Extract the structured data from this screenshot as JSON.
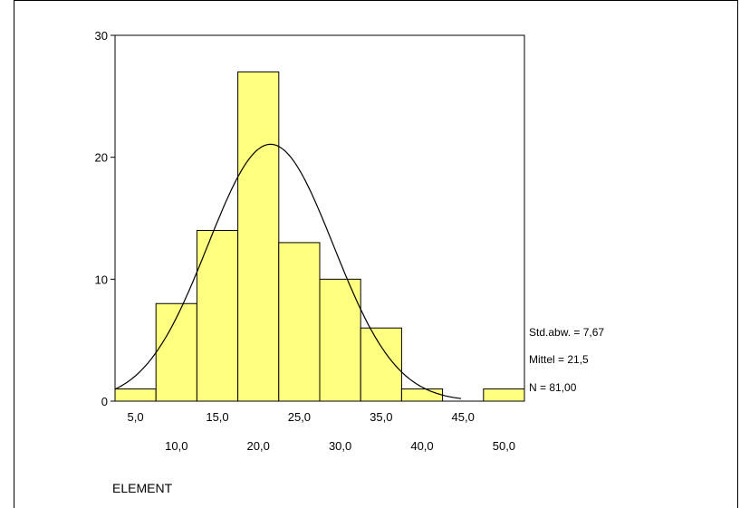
{
  "chart_data": {
    "type": "bar",
    "xlabel": "ELEMENT",
    "ylabel": "",
    "bin_width": 5,
    "bins": [
      {
        "x0": 2.5,
        "x1": 7.5,
        "count": 1
      },
      {
        "x0": 7.5,
        "x1": 12.5,
        "count": 8
      },
      {
        "x0": 12.5,
        "x1": 17.5,
        "count": 14
      },
      {
        "x0": 17.5,
        "x1": 22.5,
        "count": 27
      },
      {
        "x0": 22.5,
        "x1": 27.5,
        "count": 13
      },
      {
        "x0": 27.5,
        "x1": 32.5,
        "count": 10
      },
      {
        "x0": 32.5,
        "x1": 37.5,
        "count": 6
      },
      {
        "x0": 37.5,
        "x1": 42.5,
        "count": 1
      },
      {
        "x0": 42.5,
        "x1": 47.5,
        "count": 0
      },
      {
        "x0": 47.5,
        "x1": 52.5,
        "count": 1
      }
    ],
    "xlim": [
      2.5,
      52.5
    ],
    "ylim": [
      0,
      30
    ],
    "y_ticks": [
      "0",
      "10",
      "20",
      "30"
    ],
    "y_tick_values": [
      0,
      10,
      20,
      30
    ],
    "x_ticks_upper": [
      "5,0",
      "15,0",
      "25,0",
      "35,0",
      "45,0"
    ],
    "x_ticks_upper_values": [
      5,
      15,
      25,
      35,
      45
    ],
    "x_ticks_lower": [
      "10,0",
      "20,0",
      "30,0",
      "40,0",
      "50,0"
    ],
    "x_ticks_lower_values": [
      10,
      20,
      30,
      40,
      50
    ],
    "normal_curve": {
      "mean": 21.5,
      "std": 7.67,
      "n": 81
    },
    "stats": {
      "std": "Std.abw. = 7,67",
      "mean": "Mittel = 21,5",
      "n": "N = 81,00"
    },
    "colors": {
      "bar_fill": "#ffff80",
      "bar_stroke": "#000000",
      "curve": "#000000"
    }
  }
}
